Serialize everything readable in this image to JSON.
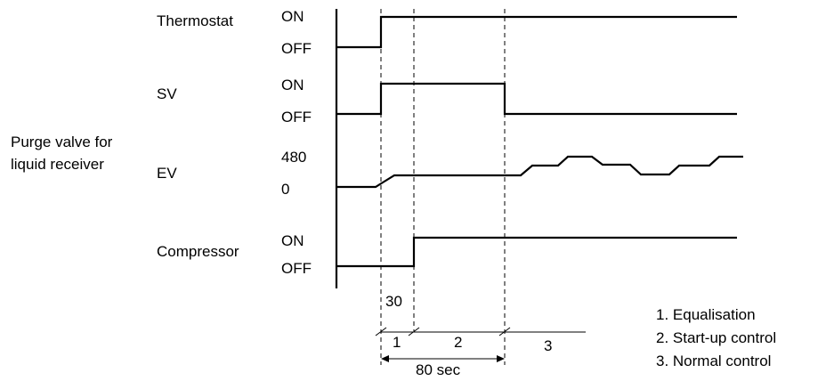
{
  "group_label": {
    "line1": "Purge valve for",
    "line2": "liquid receiver"
  },
  "signals": [
    {
      "name": "Thermostat",
      "high": "ON",
      "low": "OFF"
    },
    {
      "name": "SV",
      "high": "ON",
      "low": "OFF"
    },
    {
      "name": "EV",
      "high": "480",
      "low": "0"
    },
    {
      "name": "Compressor",
      "high": "ON",
      "low": "OFF"
    }
  ],
  "timing": {
    "delay_label": "30",
    "total_label": "80 sec",
    "phase_numbers": [
      "1",
      "2",
      "3"
    ]
  },
  "legend": [
    "1. Equalisation",
    "2. Start-up control",
    "3. Normal control"
  ]
}
